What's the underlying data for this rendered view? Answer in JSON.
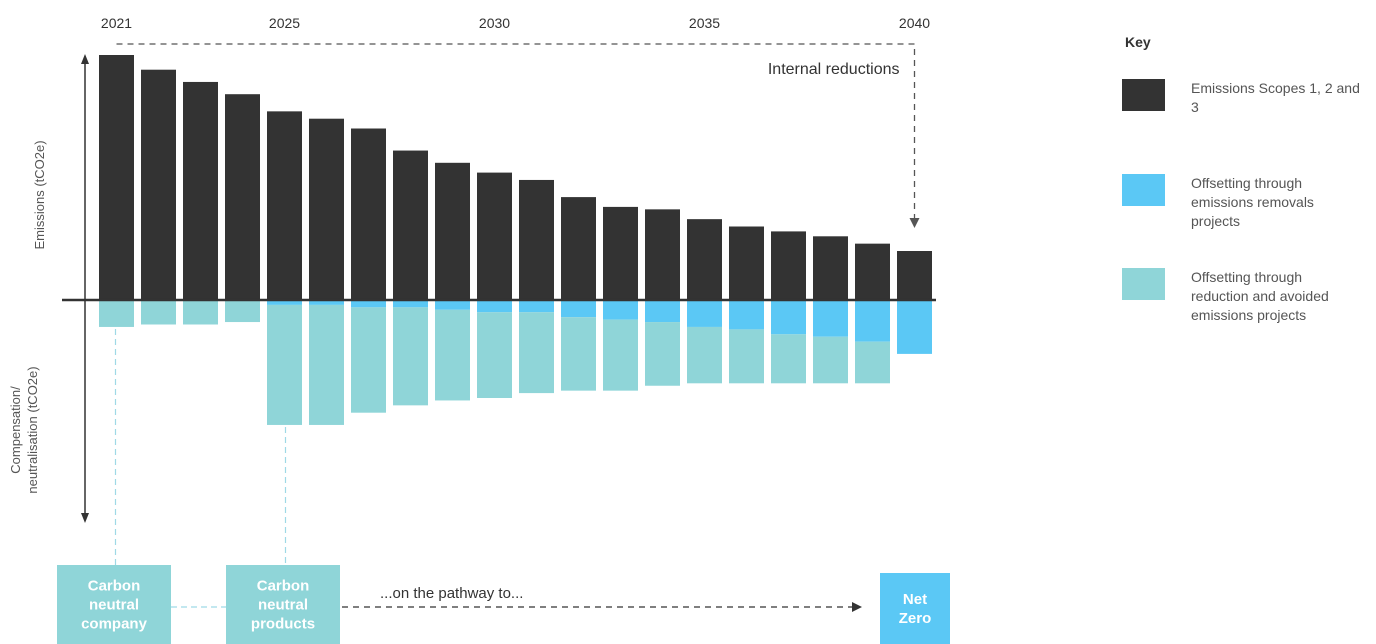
{
  "colors": {
    "emissions": "#333333",
    "removals": "#5bc8f5",
    "avoided": "#8fd5d8",
    "dashed": "#555555",
    "connector": "#9fd9e6",
    "milestone_box": "#8fd5d8",
    "net_zero_box": "#5bc8f5"
  },
  "chart_data": {
    "type": "bar",
    "title": "",
    "categories": [
      "2021",
      "2022",
      "2023",
      "2024",
      "2025",
      "2026",
      "2027",
      "2028",
      "2029",
      "2030",
      "2031",
      "2032",
      "2033",
      "2034",
      "2035",
      "2036",
      "2037",
      "2038",
      "2039",
      "2040"
    ],
    "year_tick_labels": [
      "2021",
      "2025",
      "2030",
      "2035",
      "2040"
    ],
    "ylabel_positive": "Emissions (tCO2e)",
    "ylabel_negative": "Compensation/ neutralisation (tCO2e)",
    "ylabel_negative_lines": [
      "Compensation/",
      "neutralisation (tCO2e)"
    ],
    "ylim": [
      -100,
      100
    ],
    "series": [
      {
        "name": "Emissions Scopes 1, 2 and 3",
        "stack": "above",
        "values": [
          100,
          94,
          89,
          84,
          77,
          74,
          70,
          61,
          56,
          52,
          49,
          42,
          38,
          37,
          33,
          30,
          28,
          26,
          23,
          20
        ]
      },
      {
        "name": "Offsetting through emissions removals projects",
        "stack": "below",
        "values": [
          0,
          0,
          0,
          0,
          -2,
          -2,
          -3,
          -3,
          -4,
          -5,
          -5,
          -7,
          -8,
          -9,
          -11,
          -12,
          -14,
          -15,
          -17,
          -22
        ]
      },
      {
        "name": "Offsetting through reduction and avoided emissions projects",
        "stack": "below",
        "values": [
          -11,
          -10,
          -10,
          -9,
          -49,
          -49,
          -43,
          -40,
          -37,
          -35,
          -33,
          -30,
          -29,
          -26,
          -23,
          -22,
          -20,
          -19,
          -17,
          0
        ]
      }
    ],
    "annotations": {
      "internal_reductions": "Internal reductions",
      "pathway": "...on the pathway to..."
    },
    "milestones": [
      {
        "label_lines": [
          "Carbon",
          "neutral",
          "company"
        ],
        "year": "2021"
      },
      {
        "label_lines": [
          "Carbon",
          "neutral",
          "products"
        ],
        "year": "2025"
      },
      {
        "label_lines": [
          "Net",
          "Zero"
        ],
        "year": "2040"
      }
    ],
    "legend_position": "right"
  },
  "key": {
    "title": "Key",
    "items": [
      {
        "label": "Emissions Scopes 1, 2 and 3",
        "color": "#333333"
      },
      {
        "label": "Offsetting through emissions removals projects",
        "color": "#5bc8f5"
      },
      {
        "label": "Offsetting through reduction and avoided emissions projects",
        "color": "#8fd5d8"
      }
    ]
  }
}
